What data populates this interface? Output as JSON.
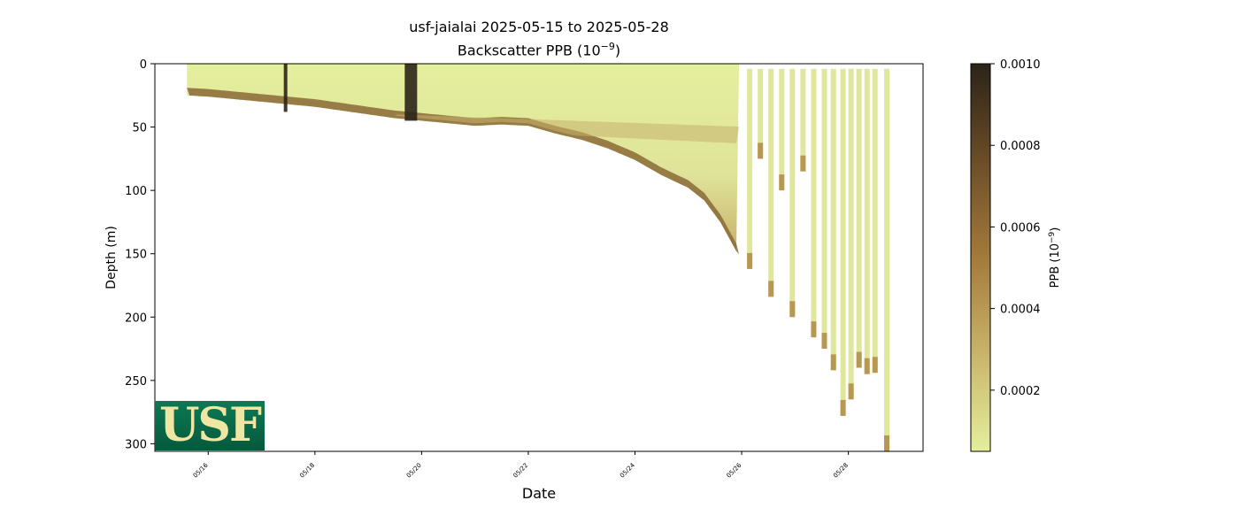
{
  "chart_data": {
    "type": "heatmap",
    "title": "usf-jaialai 2025-05-15 to 2025-05-28",
    "subtitle_prefix": "Backscatter PPB (10",
    "subtitle_exp": "−9",
    "subtitle_suffix": ")",
    "xlabel": "Date",
    "ylabel": "Depth (m)",
    "xlim": [
      "2025-05-15",
      "2025-05-29.4"
    ],
    "ylim": [
      306,
      0
    ],
    "x_ticks": [
      "05/16",
      "05/18",
      "05/20",
      "05/22",
      "05/24",
      "05/26",
      "05/28"
    ],
    "y_ticks": [
      0,
      50,
      100,
      150,
      200,
      250,
      300
    ],
    "colorbar": {
      "label_prefix": "PPB (10",
      "label_exp": "−9",
      "label_suffix": ")",
      "range": [
        5e-05,
        0.001
      ],
      "ticks": [
        "0.0010",
        "0.0008",
        "0.0006",
        "0.0004",
        "0.0002"
      ],
      "tick_values": [
        0.001,
        0.0008,
        0.0006,
        0.0004,
        0.0002
      ],
      "colors": [
        "#e4ef9c",
        "#c9b56a",
        "#a37a3a",
        "#6b4d28",
        "#2b2318"
      ]
    },
    "bottom_profile": {
      "day": [
        15.6,
        16.0,
        16.5,
        17.0,
        17.5,
        18.0,
        18.5,
        19.0,
        19.5,
        20.0,
        20.5,
        21.0,
        21.5,
        22.0,
        22.5,
        23.0,
        23.5,
        24.0,
        24.5,
        25.0,
        25.3,
        25.6,
        25.9,
        26.2,
        26.5,
        26.8,
        27.1,
        27.4,
        27.7,
        27.9
      ],
      "depth": [
        25,
        26,
        28,
        30,
        32,
        34,
        37,
        40,
        43,
        45,
        47,
        49,
        48,
        49,
        55,
        60,
        67,
        76,
        88,
        98,
        108,
        125,
        148,
        162,
        178,
        196,
        212,
        228,
        245,
        278
      ]
    },
    "profile_casts": [
      {
        "day": 26.15,
        "max_depth": 162
      },
      {
        "day": 26.35,
        "max_depth": 75
      },
      {
        "day": 26.55,
        "max_depth": 184
      },
      {
        "day": 26.75,
        "max_depth": 100
      },
      {
        "day": 26.95,
        "max_depth": 200
      },
      {
        "day": 27.15,
        "max_depth": 85
      },
      {
        "day": 27.35,
        "max_depth": 216
      },
      {
        "day": 27.55,
        "max_depth": 225
      },
      {
        "day": 27.72,
        "max_depth": 242
      },
      {
        "day": 27.9,
        "max_depth": 278
      },
      {
        "day": 28.05,
        "max_depth": 265
      },
      {
        "day": 28.2,
        "max_depth": 240
      },
      {
        "day": 28.35,
        "max_depth": 245
      },
      {
        "day": 28.5,
        "max_depth": 244
      },
      {
        "day": 28.72,
        "max_depth": 306
      }
    ],
    "logo_text": "USF"
  }
}
